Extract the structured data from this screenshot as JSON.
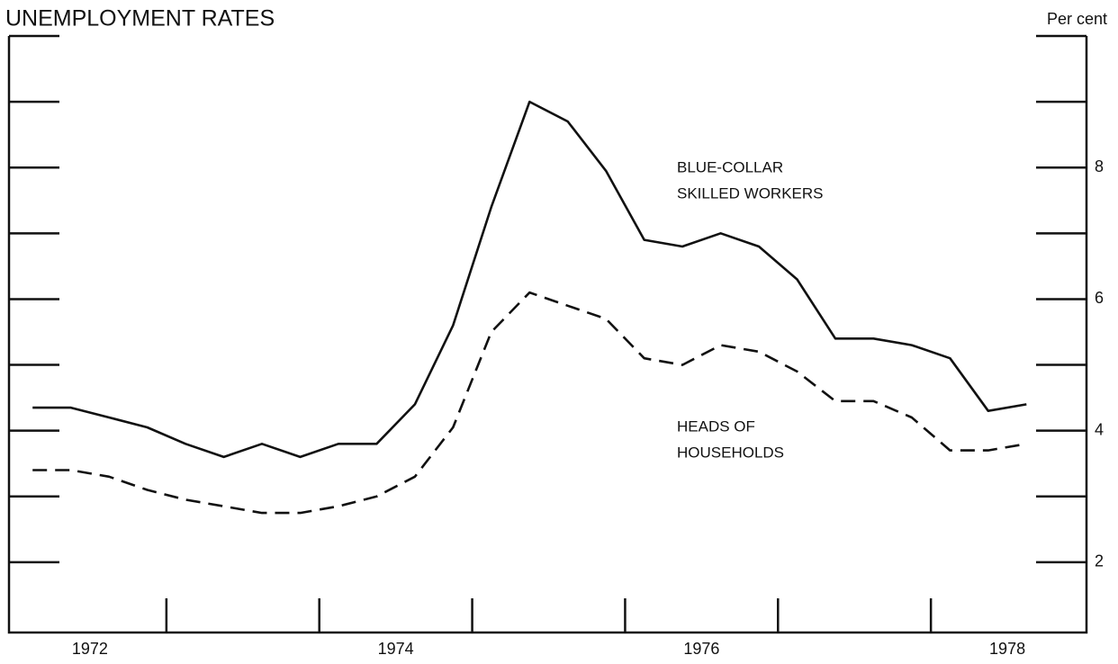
{
  "chart_data": {
    "type": "line",
    "title": "UNEMPLOYMENT RATES",
    "y_axis_label": "Per cent",
    "annotations": [
      "BLUE-COLLAR",
      "SKILLED WORKERS",
      "HEADS OF",
      "HOUSEHOLDS"
    ],
    "x": [
      1972.125,
      1972.375,
      1972.625,
      1972.875,
      1973.125,
      1973.375,
      1973.625,
      1973.875,
      1974.125,
      1974.375,
      1974.625,
      1974.875,
      1975.125,
      1975.375,
      1975.625,
      1975.875,
      1976.125,
      1976.375,
      1976.625,
      1976.875,
      1977.125,
      1977.375,
      1977.625,
      1977.875,
      1978.125,
      1978.375,
      1978.625
    ],
    "series": [
      {
        "name": "BLUE-COLLAR SKILLED WORKERS",
        "color": "#111111",
        "line_style": "solid",
        "values": [
          4.35,
          4.35,
          4.2,
          4.05,
          3.8,
          3.6,
          3.8,
          3.6,
          3.8,
          3.8,
          4.4,
          5.6,
          7.4,
          9.0,
          8.7,
          7.95,
          6.9,
          6.8,
          7.0,
          6.8,
          6.3,
          5.4,
          5.4,
          5.3,
          5.1,
          4.3,
          4.4
        ]
      },
      {
        "name": "HEADS OF HOUSEHOLDS",
        "color": "#111111",
        "line_style": "dashed",
        "values": [
          3.4,
          3.4,
          3.3,
          3.1,
          2.95,
          2.85,
          2.75,
          2.75,
          2.85,
          3.0,
          3.3,
          4.05,
          5.5,
          6.1,
          5.9,
          5.7,
          5.1,
          5.0,
          5.3,
          5.2,
          4.9,
          4.45,
          4.45,
          4.2,
          3.7,
          3.7,
          3.8
        ]
      }
    ],
    "xlim": [
      1972,
      1979
    ],
    "xticks": [
      {
        "value": 1972.5,
        "label": "1972"
      },
      {
        "value": 1974.5,
        "label": "1974"
      },
      {
        "value": 1976.5,
        "label": "1976"
      },
      {
        "value": 1978.5,
        "label": "1978"
      }
    ],
    "minor_xticks": [
      1973,
      1974,
      1975,
      1976,
      1977,
      1978
    ],
    "ylim": [
      1,
      10
    ],
    "yticks": [
      2,
      4,
      6,
      8
    ],
    "minor_yticks": [
      3,
      5,
      7,
      9,
      10
    ],
    "y_axis_side": "right",
    "grid": false,
    "legend": false
  }
}
